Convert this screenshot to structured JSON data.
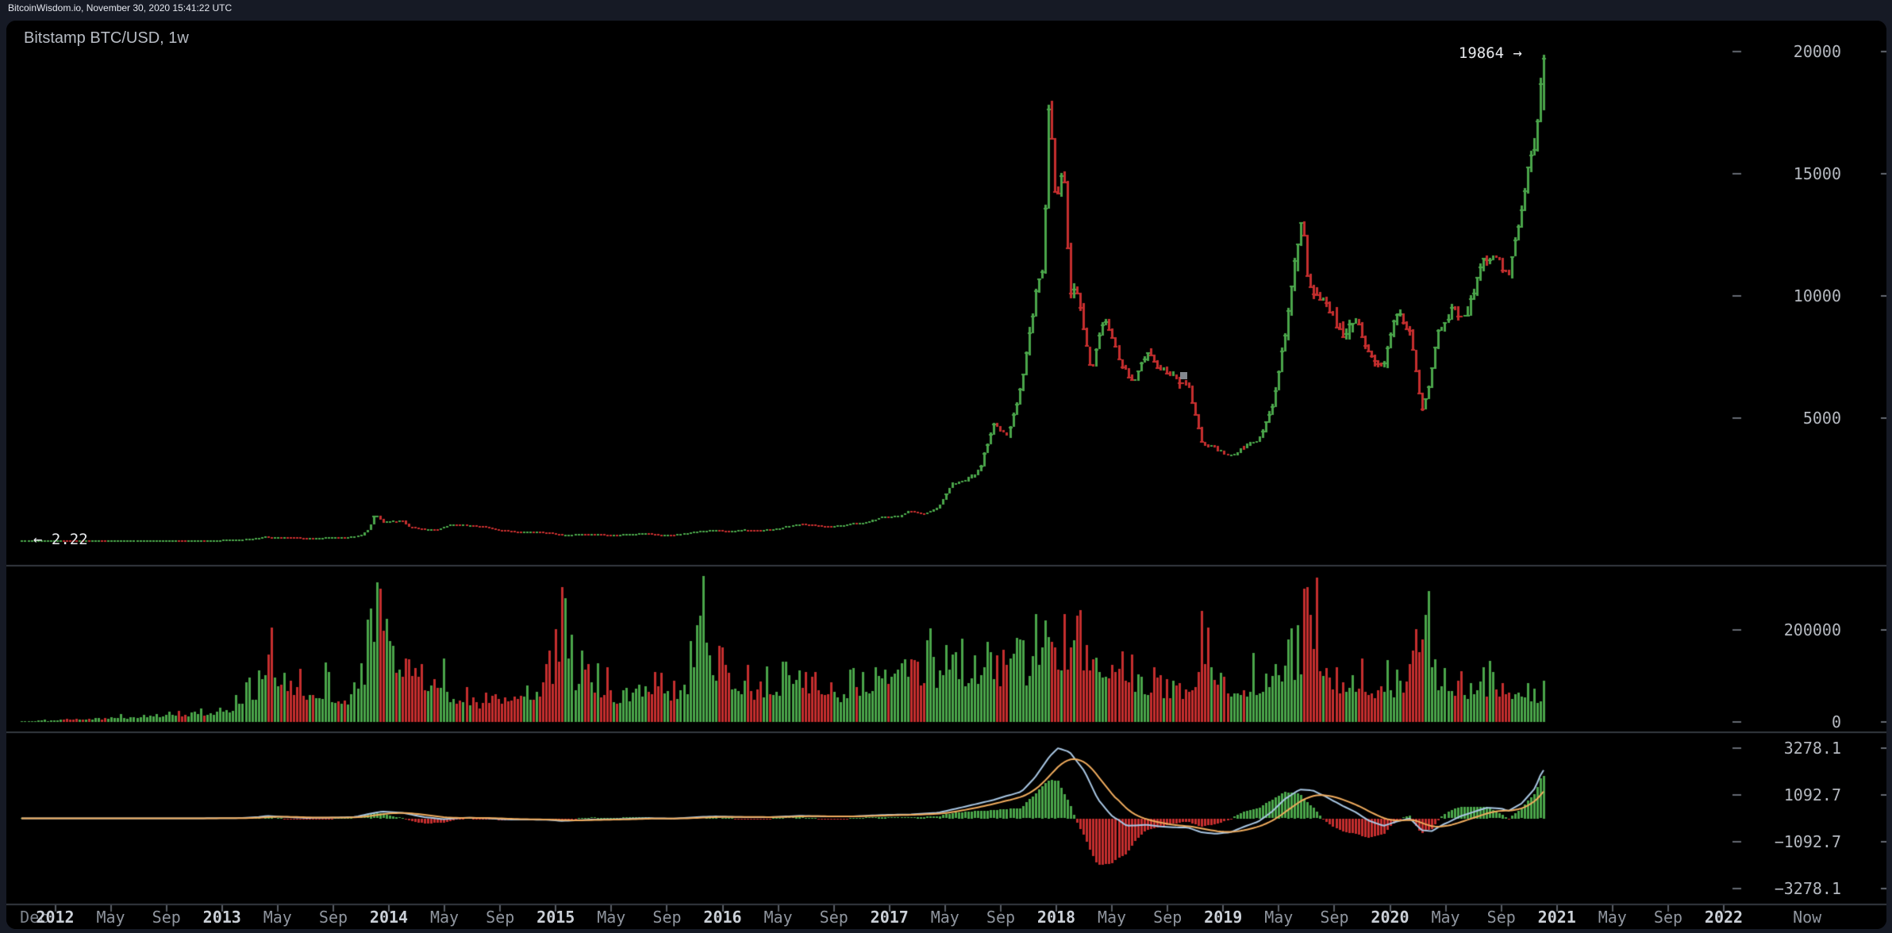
{
  "topbar": {
    "text": "BitcoinWisdom.io, November 30, 2020 15:41:22 UTC"
  },
  "chart": {
    "title": "Bitstamp BTC/USD, 1w",
    "last_price_label": "19864 →",
    "first_price_label": "← 2.22"
  },
  "colors": {
    "background": "#161a25",
    "panel": "#000000",
    "up": "#4aa54a",
    "down": "#c52e2e",
    "macd_line": "#a9c7e4",
    "signal_line": "#f0ac5e",
    "axis_text": "#b4b8bf",
    "tick_dash": "#646a72",
    "divider": "#343941"
  },
  "axes": {
    "price_ticks": [
      {
        "label": "20000",
        "value": 20000
      },
      {
        "label": "15000",
        "value": 15000
      },
      {
        "label": "10000",
        "value": 10000
      },
      {
        "label": "5000",
        "value": 5000
      }
    ],
    "volume_ticks": [
      {
        "label": "200000",
        "value": 200000
      },
      {
        "label": "0",
        "value": 0
      }
    ],
    "indicator_ticks": [
      {
        "label": "3278.1",
        "value": 3278.1
      },
      {
        "label": "1092.7",
        "value": 1092.7
      },
      {
        "label": "−1092.7",
        "value": -1092.7
      },
      {
        "label": "−3278.1",
        "value": -3278.1
      }
    ],
    "time_ticks": [
      {
        "label": "Dec",
        "t": 2011.875,
        "style": "dim",
        "mark": false
      },
      {
        "label": "2012",
        "t": 2012.0,
        "style": "bold",
        "mark": true
      },
      {
        "label": "May",
        "t": 2012.333,
        "style": "",
        "mark": true
      },
      {
        "label": "Sep",
        "t": 2012.667,
        "style": "",
        "mark": true
      },
      {
        "label": "2013",
        "t": 2013.0,
        "style": "bold",
        "mark": true
      },
      {
        "label": "May",
        "t": 2013.333,
        "style": "",
        "mark": true
      },
      {
        "label": "Sep",
        "t": 2013.667,
        "style": "",
        "mark": true
      },
      {
        "label": "2014",
        "t": 2014.0,
        "style": "bold",
        "mark": true
      },
      {
        "label": "May",
        "t": 2014.333,
        "style": "",
        "mark": true
      },
      {
        "label": "Sep",
        "t": 2014.667,
        "style": "",
        "mark": true
      },
      {
        "label": "2015",
        "t": 2015.0,
        "style": "bold",
        "mark": true
      },
      {
        "label": "May",
        "t": 2015.333,
        "style": "",
        "mark": true
      },
      {
        "label": "Sep",
        "t": 2015.667,
        "style": "",
        "mark": true
      },
      {
        "label": "2016",
        "t": 2016.0,
        "style": "bold",
        "mark": true
      },
      {
        "label": "May",
        "t": 2016.333,
        "style": "",
        "mark": true
      },
      {
        "label": "Sep",
        "t": 2016.667,
        "style": "",
        "mark": true
      },
      {
        "label": "2017",
        "t": 2017.0,
        "style": "bold",
        "mark": true
      },
      {
        "label": "May",
        "t": 2017.333,
        "style": "",
        "mark": true
      },
      {
        "label": "Sep",
        "t": 2017.667,
        "style": "",
        "mark": true
      },
      {
        "label": "2018",
        "t": 2018.0,
        "style": "bold",
        "mark": true
      },
      {
        "label": "May",
        "t": 2018.333,
        "style": "",
        "mark": true
      },
      {
        "label": "Sep",
        "t": 2018.667,
        "style": "",
        "mark": true
      },
      {
        "label": "2019",
        "t": 2019.0,
        "style": "bold",
        "mark": true
      },
      {
        "label": "May",
        "t": 2019.333,
        "style": "",
        "mark": true
      },
      {
        "label": "Sep",
        "t": 2019.667,
        "style": "",
        "mark": true
      },
      {
        "label": "2020",
        "t": 2020.0,
        "style": "bold",
        "mark": true
      },
      {
        "label": "May",
        "t": 2020.333,
        "style": "",
        "mark": true
      },
      {
        "label": "Sep",
        "t": 2020.667,
        "style": "",
        "mark": true
      },
      {
        "label": "2021",
        "t": 2021.0,
        "style": "bold",
        "mark": true
      },
      {
        "label": "May",
        "t": 2021.333,
        "style": "",
        "mark": true
      },
      {
        "label": "Sep",
        "t": 2021.667,
        "style": "",
        "mark": true
      },
      {
        "label": "2022",
        "t": 2022.0,
        "style": "bold",
        "mark": true
      },
      {
        "label": "Now",
        "t": 2022.5,
        "style": "",
        "mark": false
      }
    ]
  },
  "chart_data": {
    "type": "candlestick",
    "symbol": "Bitstamp BTC/USD",
    "interval": "1w",
    "time_range_years": [
      2011.8,
      2022.5
    ],
    "data_end_year": 2020.916,
    "first_trade_price": 2.22,
    "latest_price": 19864,
    "price_axis": {
      "ticks": [
        5000,
        10000,
        15000,
        20000
      ],
      "min": 0
    },
    "volume_axis": {
      "ticks": [
        0,
        200000
      ]
    },
    "indicator_axis": {
      "ticks": [
        3278.1,
        1092.7,
        -1092.7,
        -3278.1
      ],
      "zero": 0
    },
    "price_anchors": [
      [
        2011.8,
        2.3
      ],
      [
        2011.87,
        3.0
      ],
      [
        2011.96,
        4.3
      ],
      [
        2012.04,
        5.5
      ],
      [
        2012.12,
        4.9
      ],
      [
        2012.21,
        4.9
      ],
      [
        2012.29,
        5.0
      ],
      [
        2012.37,
        5.1
      ],
      [
        2012.46,
        6.4
      ],
      [
        2012.54,
        9.0
      ],
      [
        2012.62,
        10.1
      ],
      [
        2012.71,
        12.4
      ],
      [
        2012.79,
        11.2
      ],
      [
        2012.87,
        12.5
      ],
      [
        2012.96,
        13.4
      ],
      [
        2013.04,
        19.7
      ],
      [
        2013.12,
        33.4
      ],
      [
        2013.21,
        93
      ],
      [
        2013.27,
        160
      ],
      [
        2013.29,
        104
      ],
      [
        2013.33,
        139
      ],
      [
        2013.42,
        128
      ],
      [
        2013.5,
        97
      ],
      [
        2013.58,
        106
      ],
      [
        2013.67,
        141
      ],
      [
        2013.75,
        140
      ],
      [
        2013.83,
        204
      ],
      [
        2013.88,
        460
      ],
      [
        2013.915,
        1120
      ],
      [
        2013.96,
        732
      ],
      [
        2014.08,
        815
      ],
      [
        2014.12,
        550
      ],
      [
        2014.21,
        455
      ],
      [
        2014.29,
        447
      ],
      [
        2014.37,
        628
      ],
      [
        2014.46,
        635
      ],
      [
        2014.54,
        583
      ],
      [
        2014.62,
        478
      ],
      [
        2014.71,
        388
      ],
      [
        2014.79,
        338
      ],
      [
        2014.87,
        376
      ],
      [
        2014.96,
        318
      ],
      [
        2015.04,
        217
      ],
      [
        2015.12,
        254
      ],
      [
        2015.21,
        245
      ],
      [
        2015.29,
        236
      ],
      [
        2015.37,
        230
      ],
      [
        2015.46,
        262
      ],
      [
        2015.54,
        284
      ],
      [
        2015.62,
        230
      ],
      [
        2015.71,
        237
      ],
      [
        2015.79,
        314
      ],
      [
        2015.87,
        377
      ],
      [
        2015.96,
        430
      ],
      [
        2016.04,
        368
      ],
      [
        2016.12,
        437
      ],
      [
        2016.21,
        416
      ],
      [
        2016.29,
        449
      ],
      [
        2016.37,
        531
      ],
      [
        2016.46,
        673
      ],
      [
        2016.54,
        624
      ],
      [
        2016.62,
        573
      ],
      [
        2016.71,
        609
      ],
      [
        2016.79,
        700
      ],
      [
        2016.87,
        742
      ],
      [
        2016.96,
        963
      ],
      [
        2017.04,
        967
      ],
      [
        2017.12,
        1190
      ],
      [
        2017.21,
        1072
      ],
      [
        2017.29,
        1348
      ],
      [
        2017.37,
        2287
      ],
      [
        2017.46,
        2481
      ],
      [
        2017.54,
        2872
      ],
      [
        2017.62,
        4735
      ],
      [
        2017.71,
        4353
      ],
      [
        2017.79,
        6440
      ],
      [
        2017.87,
        9947
      ],
      [
        2017.92,
        11250
      ],
      [
        2017.94,
        15150
      ],
      [
        2017.96,
        19100
      ],
      [
        2017.98,
        13900
      ],
      [
        2018.02,
        14500
      ],
      [
        2018.04,
        16000
      ],
      [
        2018.08,
        10200
      ],
      [
        2018.12,
        10300
      ],
      [
        2018.21,
        6928
      ],
      [
        2018.29,
        9240
      ],
      [
        2018.37,
        7488
      ],
      [
        2018.46,
        6390
      ],
      [
        2018.54,
        7727
      ],
      [
        2018.62,
        7033
      ],
      [
        2018.71,
        6617
      ],
      [
        2018.79,
        6300
      ],
      [
        2018.87,
        4017
      ],
      [
        2018.96,
        3742
      ],
      [
        2019.04,
        3457
      ],
      [
        2019.12,
        3820
      ],
      [
        2019.21,
        4102
      ],
      [
        2019.29,
        5320
      ],
      [
        2019.37,
        8555
      ],
      [
        2019.46,
        12900
      ],
      [
        2019.48,
        13100
      ],
      [
        2019.5,
        10760
      ],
      [
        2019.54,
        10080
      ],
      [
        2019.62,
        9590
      ],
      [
        2019.71,
        8290
      ],
      [
        2019.79,
        9150
      ],
      [
        2019.87,
        7560
      ],
      [
        2019.96,
        7190
      ],
      [
        2020.04,
        9350
      ],
      [
        2020.12,
        8530
      ],
      [
        2020.19,
        5300
      ],
      [
        2020.23,
        6200
      ],
      [
        2020.29,
        8620
      ],
      [
        2020.37,
        9450
      ],
      [
        2020.46,
        9140
      ],
      [
        2020.54,
        11350
      ],
      [
        2020.62,
        11650
      ],
      [
        2020.71,
        10780
      ],
      [
        2020.79,
        13800
      ],
      [
        2020.84,
        15480
      ],
      [
        2020.87,
        15960
      ],
      [
        2020.895,
        18420
      ],
      [
        2020.916,
        19750
      ]
    ],
    "volume_anchors_kBTC": [
      [
        2011.8,
        2
      ],
      [
        2011.96,
        4
      ],
      [
        2012.12,
        8
      ],
      [
        2012.37,
        12
      ],
      [
        2012.62,
        18
      ],
      [
        2012.87,
        25
      ],
      [
        2012.96,
        30
      ],
      [
        2013.04,
        40
      ],
      [
        2013.12,
        55
      ],
      [
        2013.21,
        90
      ],
      [
        2013.27,
        230
      ],
      [
        2013.33,
        150
      ],
      [
        2013.42,
        120
      ],
      [
        2013.5,
        90
      ],
      [
        2013.58,
        95
      ],
      [
        2013.67,
        80
      ],
      [
        2013.75,
        70
      ],
      [
        2013.83,
        115
      ],
      [
        2013.88,
        230
      ],
      [
        2013.96,
        255
      ],
      [
        2014.08,
        165
      ],
      [
        2014.12,
        185
      ],
      [
        2014.21,
        130
      ],
      [
        2014.29,
        110
      ],
      [
        2014.37,
        85
      ],
      [
        2014.46,
        70
      ],
      [
        2014.54,
        60
      ],
      [
        2014.62,
        80
      ],
      [
        2014.71,
        75
      ],
      [
        2014.79,
        100
      ],
      [
        2014.87,
        90
      ],
      [
        2014.96,
        110
      ],
      [
        2015.04,
        280
      ],
      [
        2015.12,
        130
      ],
      [
        2015.21,
        110
      ],
      [
        2015.29,
        90
      ],
      [
        2015.37,
        70
      ],
      [
        2015.46,
        80
      ],
      [
        2015.54,
        110
      ],
      [
        2015.62,
        130
      ],
      [
        2015.71,
        80
      ],
      [
        2015.79,
        120
      ],
      [
        2015.855,
        310
      ],
      [
        2015.96,
        170
      ],
      [
        2016.04,
        150
      ],
      [
        2016.12,
        100
      ],
      [
        2016.21,
        90
      ],
      [
        2016.29,
        95
      ],
      [
        2016.37,
        120
      ],
      [
        2016.46,
        140
      ],
      [
        2016.54,
        110
      ],
      [
        2016.62,
        90
      ],
      [
        2016.71,
        85
      ],
      [
        2016.79,
        95
      ],
      [
        2016.87,
        105
      ],
      [
        2016.96,
        140
      ],
      [
        2017.04,
        175
      ],
      [
        2017.12,
        140
      ],
      [
        2017.21,
        155
      ],
      [
        2017.29,
        140
      ],
      [
        2017.37,
        190
      ],
      [
        2017.46,
        145
      ],
      [
        2017.54,
        165
      ],
      [
        2017.62,
        155
      ],
      [
        2017.71,
        140
      ],
      [
        2017.79,
        150
      ],
      [
        2017.87,
        175
      ],
      [
        2017.96,
        215
      ],
      [
        2018.04,
        225
      ],
      [
        2018.12,
        235
      ],
      [
        2018.21,
        170
      ],
      [
        2018.29,
        140
      ],
      [
        2018.37,
        130
      ],
      [
        2018.46,
        120
      ],
      [
        2018.54,
        110
      ],
      [
        2018.62,
        100
      ],
      [
        2018.71,
        95
      ],
      [
        2018.79,
        90
      ],
      [
        2018.87,
        185
      ],
      [
        2018.96,
        150
      ],
      [
        2019.04,
        110
      ],
      [
        2019.12,
        100
      ],
      [
        2019.21,
        120
      ],
      [
        2019.29,
        145
      ],
      [
        2019.37,
        175
      ],
      [
        2019.46,
        165
      ],
      [
        2019.54,
        280
      ],
      [
        2019.62,
        150
      ],
      [
        2019.71,
        120
      ],
      [
        2019.79,
        130
      ],
      [
        2019.87,
        110
      ],
      [
        2019.96,
        90
      ],
      [
        2020.04,
        110
      ],
      [
        2020.12,
        100
      ],
      [
        2020.195,
        265
      ],
      [
        2020.29,
        130
      ],
      [
        2020.37,
        110
      ],
      [
        2020.46,
        90
      ],
      [
        2020.54,
        100
      ],
      [
        2020.62,
        95
      ],
      [
        2020.71,
        80
      ],
      [
        2020.79,
        95
      ],
      [
        2020.87,
        85
      ],
      [
        2020.916,
        75
      ]
    ],
    "macd_anchors": [
      [
        2011.8,
        0
      ],
      [
        2012.5,
        2
      ],
      [
        2012.96,
        5
      ],
      [
        2013.12,
        15
      ],
      [
        2013.21,
        60
      ],
      [
        2013.27,
        110
      ],
      [
        2013.37,
        70
      ],
      [
        2013.5,
        20
      ],
      [
        2013.67,
        35
      ],
      [
        2013.79,
        60
      ],
      [
        2013.88,
        210
      ],
      [
        2013.96,
        320
      ],
      [
        2014.08,
        260
      ],
      [
        2014.21,
        60
      ],
      [
        2014.33,
        -40
      ],
      [
        2014.46,
        30
      ],
      [
        2014.58,
        10
      ],
      [
        2014.71,
        -50
      ],
      [
        2014.87,
        -60
      ],
      [
        2014.96,
        -70
      ],
      [
        2015.04,
        -120
      ],
      [
        2015.21,
        -60
      ],
      [
        2015.37,
        -40
      ],
      [
        2015.54,
        10
      ],
      [
        2015.71,
        -10
      ],
      [
        2015.87,
        70
      ],
      [
        2015.96,
        90
      ],
      [
        2016.12,
        60
      ],
      [
        2016.29,
        55
      ],
      [
        2016.46,
        120
      ],
      [
        2016.62,
        90
      ],
      [
        2016.79,
        95
      ],
      [
        2016.96,
        160
      ],
      [
        2017.12,
        180
      ],
      [
        2017.29,
        260
      ],
      [
        2017.46,
        560
      ],
      [
        2017.62,
        850
      ],
      [
        2017.79,
        1250
      ],
      [
        2017.87,
        1900
      ],
      [
        2017.96,
        2900
      ],
      [
        2018.01,
        3278
      ],
      [
        2018.08,
        3100
      ],
      [
        2018.17,
        2200
      ],
      [
        2018.25,
        900
      ],
      [
        2018.33,
        150
      ],
      [
        2018.42,
        -350
      ],
      [
        2018.54,
        -300
      ],
      [
        2018.62,
        -380
      ],
      [
        2018.71,
        -420
      ],
      [
        2018.79,
        -430
      ],
      [
        2018.87,
        -650
      ],
      [
        2018.96,
        -720
      ],
      [
        2019.04,
        -650
      ],
      [
        2019.12,
        -400
      ],
      [
        2019.21,
        -150
      ],
      [
        2019.29,
        300
      ],
      [
        2019.37,
        900
      ],
      [
        2019.46,
        1350
      ],
      [
        2019.54,
        1300
      ],
      [
        2019.62,
        1000
      ],
      [
        2019.71,
        600
      ],
      [
        2019.79,
        300
      ],
      [
        2019.87,
        -100
      ],
      [
        2019.96,
        -350
      ],
      [
        2020.04,
        -150
      ],
      [
        2020.12,
        0
      ],
      [
        2020.19,
        -550
      ],
      [
        2020.25,
        -600
      ],
      [
        2020.33,
        -250
      ],
      [
        2020.42,
        100
      ],
      [
        2020.5,
        300
      ],
      [
        2020.58,
        500
      ],
      [
        2020.67,
        450
      ],
      [
        2020.71,
        350
      ],
      [
        2020.79,
        700
      ],
      [
        2020.87,
        1400
      ],
      [
        2020.916,
        2250
      ]
    ]
  }
}
